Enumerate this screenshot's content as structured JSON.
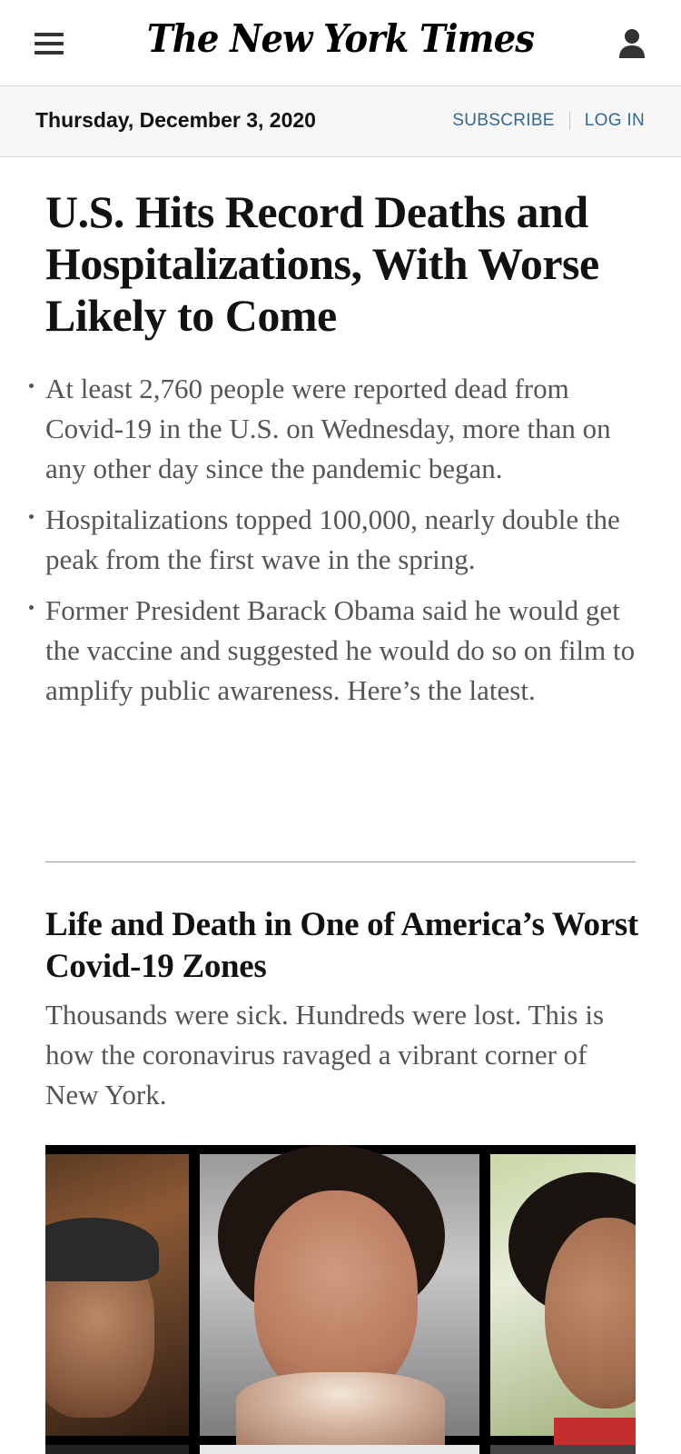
{
  "header": {
    "masthead": "The New York Times",
    "menu_icon": "hamburger-menu-icon",
    "account_icon": "user-account-icon"
  },
  "datebar": {
    "date": "Thursday, December 3, 2020",
    "subscribe": "SUBSCRIBE",
    "login": "LOG IN"
  },
  "lead_story": {
    "headline": "U.S. Hits Record Deaths and Hospitalizations, With Worse Likely to Come",
    "bullets": [
      "At least 2,760 people were reported dead from Covid-19 in the U.S. on Wednesday, more than on any other day since the pandemic began.",
      "Hospitalizations topped 100,000, nearly double the peak from the first wave in the spring.",
      "Former President Barack Obama said he would get the vaccine and suggested he would do so on film to amplify public awareness. Here’s the latest."
    ]
  },
  "second_story": {
    "headline": "Life and Death in One of America’s Worst Covid-19 Zones",
    "summary": "Thousands were sick. Hundreds were lost. This is how the coronavirus ravaged a vibrant corner of New York."
  },
  "colors": {
    "link": "#326891",
    "text": "#121212",
    "secondary_text": "#555555",
    "datebar_bg": "#f7f7f7"
  }
}
